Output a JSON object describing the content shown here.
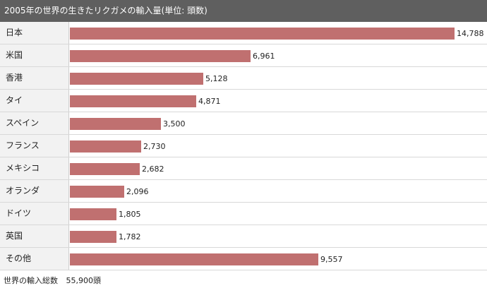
{
  "title": "2005年の世界の生きたリクガメの輸入量(単位: 頭数)",
  "chart_data": {
    "type": "bar",
    "orientation": "horizontal",
    "title": "2005年の世界の生きたリクガメの輸入量(単位: 頭数)",
    "categories": [
      "日本",
      "米国",
      "香港",
      "タイ",
      "スペイン",
      "フランス",
      "メキシコ",
      "オランダ",
      "ドイツ",
      "英国",
      "その他"
    ],
    "values": [
      14788,
      6961,
      5128,
      4871,
      3500,
      2730,
      2682,
      2096,
      1805,
      1782,
      9557
    ],
    "value_labels": [
      "14,788",
      "6,961",
      "5,128",
      "4,871",
      "3,500",
      "2,730",
      "2,682",
      "2,096",
      "1,805",
      "1,782",
      "9,557"
    ],
    "bar_color": "#c07070",
    "xlim": [
      0,
      16050
    ],
    "grid": false
  },
  "footer": {
    "label": "世界の輸入総数",
    "value": "55,900頭"
  }
}
